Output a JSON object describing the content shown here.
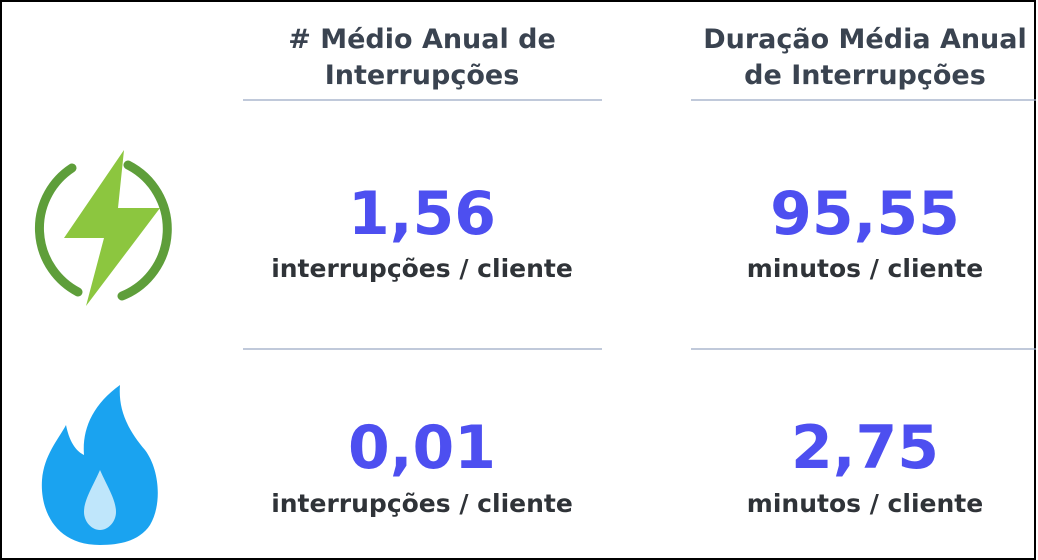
{
  "columns": [
    {
      "header_line1": "# Médio Anual de",
      "header_line2": "Interrupções"
    },
    {
      "header_line1": "Duração Média Anual",
      "header_line2": "de Interrupções"
    }
  ],
  "rows": [
    {
      "cells": [
        {
          "value": "1,56",
          "unit": "interrupções / cliente"
        },
        {
          "value": "95,55",
          "unit": "minutos / cliente"
        }
      ]
    },
    {
      "cells": [
        {
          "value": "0,01",
          "unit": "interrupções / cliente"
        },
        {
          "value": "2,75",
          "unit": "minutos / cliente"
        }
      ]
    }
  ]
}
